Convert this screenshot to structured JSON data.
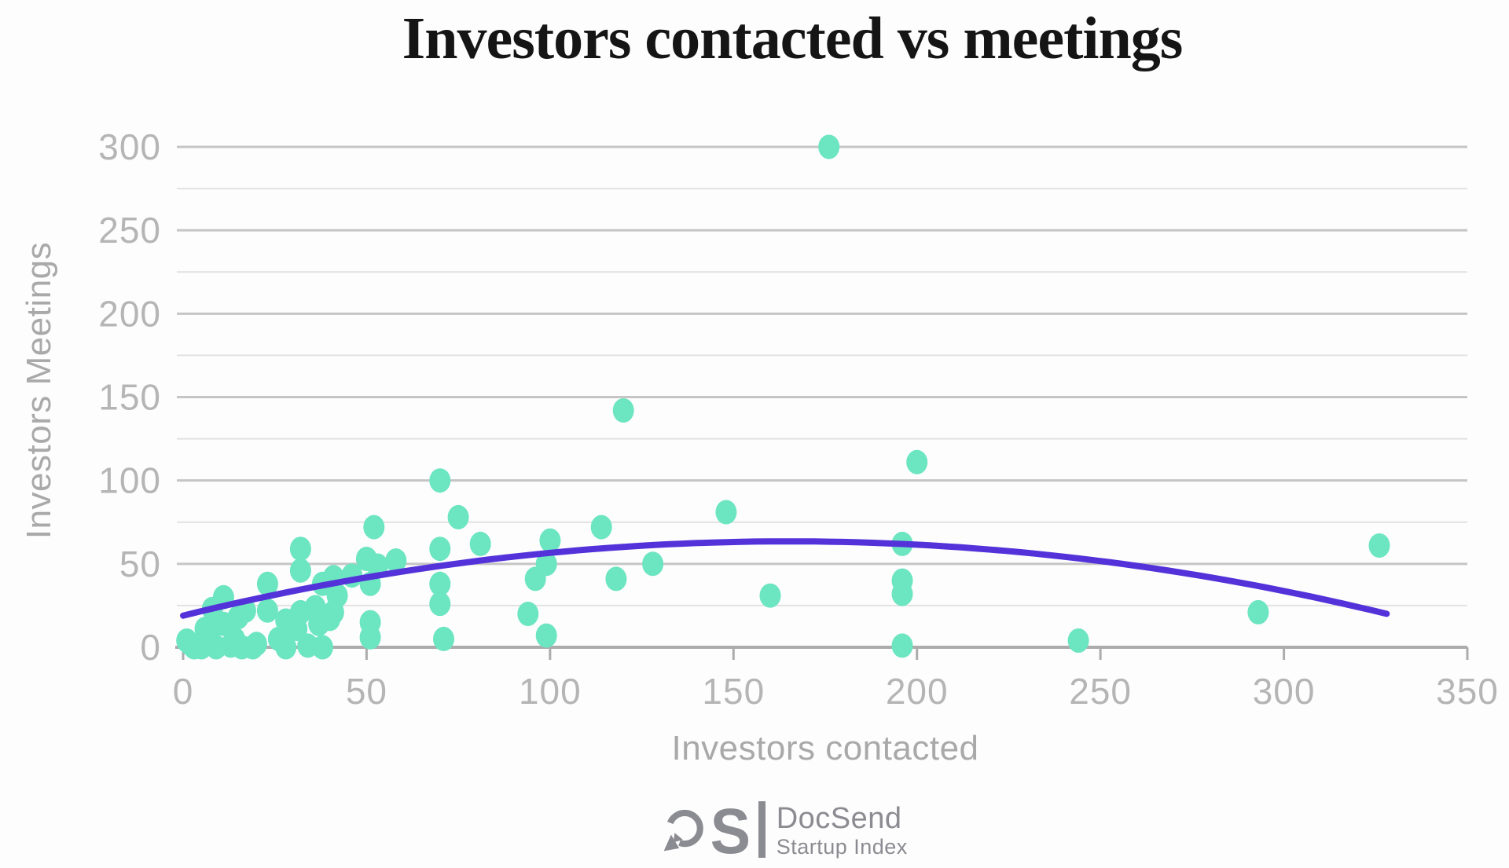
{
  "title": "Investors contacted vs meetings",
  "logo": {
    "mark_icon": "docsend-d-mark",
    "letter": "S",
    "name": "DocSend",
    "subtitle": "Startup Index"
  },
  "chart_data": {
    "type": "scatter",
    "title": "Investors contacted vs meetings",
    "xlabel": "Investors contacted",
    "ylabel": "Investors Meetings",
    "xlim": [
      0,
      350
    ],
    "ylim": [
      0,
      300
    ],
    "x_ticks": [
      0,
      50,
      100,
      150,
      200,
      250,
      300,
      350
    ],
    "y_ticks": [
      0,
      50,
      100,
      150,
      200,
      250,
      300
    ],
    "minor_gridlines": [
      25,
      75,
      125,
      175,
      225,
      275
    ],
    "grid": "horizontal-only",
    "legend": "none",
    "points": [
      [
        1,
        4
      ],
      [
        2,
        2
      ],
      [
        3,
        0
      ],
      [
        5,
        0
      ],
      [
        6,
        11
      ],
      [
        7,
        4
      ],
      [
        8,
        12
      ],
      [
        8,
        23
      ],
      [
        9,
        0
      ],
      [
        11,
        14
      ],
      [
        11,
        30
      ],
      [
        13,
        1
      ],
      [
        14,
        5
      ],
      [
        15,
        18
      ],
      [
        16,
        0
      ],
      [
        17,
        22
      ],
      [
        19,
        0
      ],
      [
        20,
        2
      ],
      [
        23,
        38
      ],
      [
        23,
        22
      ],
      [
        26,
        5
      ],
      [
        28,
        0
      ],
      [
        28,
        16
      ],
      [
        31,
        11
      ],
      [
        32,
        21
      ],
      [
        32,
        46
      ],
      [
        32,
        59
      ],
      [
        34,
        1
      ],
      [
        36,
        24
      ],
      [
        37,
        14
      ],
      [
        38,
        0
      ],
      [
        38,
        38
      ],
      [
        40,
        17
      ],
      [
        41,
        21
      ],
      [
        41,
        42
      ],
      [
        42,
        31
      ],
      [
        46,
        43
      ],
      [
        50,
        53
      ],
      [
        53,
        49
      ],
      [
        51,
        38
      ],
      [
        51,
        15
      ],
      [
        51,
        6
      ],
      [
        52,
        72
      ],
      [
        58,
        52
      ],
      [
        70,
        59
      ],
      [
        70,
        38
      ],
      [
        70,
        26
      ],
      [
        70,
        100
      ],
      [
        71,
        5
      ],
      [
        75,
        78
      ],
      [
        81,
        62
      ],
      [
        94,
        20
      ],
      [
        96,
        41
      ],
      [
        99,
        50
      ],
      [
        99,
        7
      ],
      [
        100,
        64
      ],
      [
        114,
        72
      ],
      [
        118,
        41
      ],
      [
        120,
        142
      ],
      [
        128,
        50
      ],
      [
        148,
        81
      ],
      [
        160,
        31
      ],
      [
        176,
        300
      ],
      [
        196,
        62
      ],
      [
        196,
        40
      ],
      [
        196,
        32
      ],
      [
        196,
        1
      ],
      [
        200,
        111
      ],
      [
        244,
        4
      ],
      [
        293,
        21
      ],
      [
        326,
        61
      ]
    ],
    "trendline": {
      "type": "quadratic",
      "x_start": 0,
      "x_end": 328,
      "y_at_x0": 19,
      "peak_x": 165,
      "peak_y": 63.5
    },
    "colors": {
      "point": "#6ce5c1",
      "trend": "#5333d9",
      "grid_major": "#c5c5c5",
      "grid_minor": "#e2e2e2",
      "axis": "#acacac",
      "tick_label": "#b5b5b5",
      "axis_title": "#a9a9a9",
      "title": "#151515",
      "logo_gray": "#8b8b92"
    }
  }
}
